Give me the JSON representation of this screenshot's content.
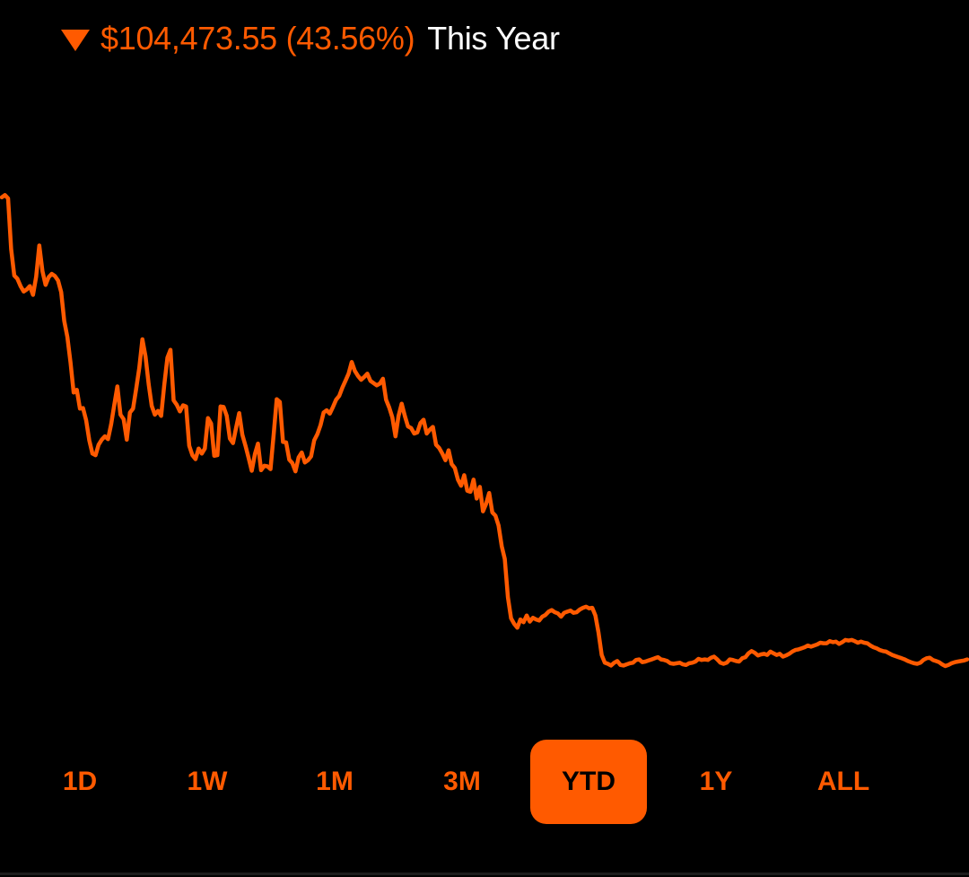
{
  "header": {
    "change_text": "$104,473.55 (43.56%)",
    "period_text": "This Year",
    "direction_icon": "down-triangle-icon"
  },
  "ranges": {
    "items": [
      "1D",
      "1W",
      "1M",
      "3M",
      "YTD",
      "1Y",
      "ALL"
    ],
    "selected": "YTD"
  },
  "colors": {
    "accent": "#FF5A00",
    "background": "#000000",
    "text": "#FFFFFF"
  },
  "chart_data": {
    "type": "line",
    "title": "",
    "xlabel": "",
    "ylabel": "",
    "grid": false,
    "legend": "none",
    "ylim": [
      0,
      100
    ],
    "series": [
      {
        "values": [
          96.8,
          97.2,
          96.6,
          87.5,
          82.7,
          82.1,
          80.8,
          79.8,
          80.2,
          80.8,
          79.2,
          82.5,
          88.1,
          83.5,
          81.0,
          82.4,
          83.0,
          82.6,
          81.8,
          79.7,
          74.5,
          71.6,
          67.0,
          61.6,
          62.1,
          58.7,
          58.8,
          56.6,
          53.0,
          50.6,
          50.3,
          52.2,
          53.1,
          53.7,
          53.2,
          55.9,
          59.4,
          62.7,
          57.6,
          56.8,
          53.1,
          58.0,
          58.7,
          62.2,
          66.0,
          71.2,
          68.1,
          63.1,
          59.2,
          57.6,
          58.3,
          57.4,
          63.0,
          67.9,
          69.3,
          60.2,
          59.4,
          58.2,
          59.3,
          59.1,
          52.0,
          50.3,
          49.6,
          51.5,
          50.6,
          51.5,
          57.0,
          56.0,
          50.2,
          50.3,
          59.1,
          59.0,
          57.4,
          53.3,
          52.5,
          55.3,
          57.9,
          54.0,
          52.0,
          49.8,
          47.5,
          50.5,
          52.4,
          47.6,
          48.4,
          48.3,
          47.8,
          54.0,
          60.4,
          59.9,
          52.7,
          52.6,
          49.5,
          48.9,
          47.4,
          49.9,
          50.8,
          49.0,
          49.4,
          50.1,
          53.0,
          54.1,
          55.7,
          58.0,
          58.4,
          57.8,
          59.0,
          60.3,
          61.0,
          62.5,
          63.7,
          65.0,
          67.1,
          65.5,
          64.6,
          63.9,
          64.4,
          65.0,
          63.7,
          63.3,
          62.9,
          63.2,
          64.1,
          60.3,
          58.9,
          57.1,
          53.7,
          57.4,
          59.6,
          57.4,
          55.5,
          55.2,
          54.2,
          54.4,
          56.1,
          56.7,
          54.2,
          54.9,
          55.4,
          52.2,
          51.6,
          50.6,
          49.4,
          51.2,
          48.7,
          48.0,
          45.9,
          44.8,
          46.7,
          43.9,
          43.7,
          45.9,
          42.5,
          44.6,
          40.2,
          41.5,
          43.5,
          40.0,
          39.4,
          37.6,
          33.9,
          31.6,
          24.7,
          20.9,
          19.9,
          19.2,
          20.7,
          20.2,
          21.4,
          20.3,
          21.0,
          20.7,
          20.5,
          21.2,
          21.5,
          22.1,
          22.4,
          22.0,
          21.8,
          21.2,
          21.9,
          22.1,
          22.3,
          21.9,
          22.0,
          22.5,
          22.8,
          23.0,
          22.7,
          22.8,
          21.4,
          18.3,
          14.3,
          12.9,
          12.7,
          12.4,
          12.9,
          13.2,
          12.5,
          12.4,
          12.6,
          12.8,
          12.9,
          13.4,
          13.5,
          13.0,
          13.1,
          13.3,
          13.5,
          13.7,
          13.9,
          13.5,
          13.4,
          13.2,
          12.8,
          12.7,
          12.8,
          12.9,
          12.6,
          12.5,
          12.8,
          12.9,
          13.1,
          13.6,
          13.4,
          13.5,
          13.4,
          13.8,
          14.0,
          13.5,
          12.9,
          12.7,
          12.9,
          13.5,
          13.4,
          13.2,
          13.1,
          13.7,
          13.9,
          14.6,
          15.0,
          14.7,
          14.2,
          14.4,
          14.5,
          14.3,
          14.9,
          14.6,
          14.3,
          14.5,
          14.0,
          14.2,
          14.5,
          14.9,
          15.2,
          15.3,
          15.5,
          15.7,
          16.0,
          15.8,
          16.0,
          16.2,
          16.5,
          16.4,
          16.4,
          16.8,
          16.6,
          16.7,
          16.3,
          16.6,
          17.0,
          16.9,
          17.0,
          16.8,
          16.5,
          16.7,
          16.5,
          16.4,
          16.0,
          15.7,
          15.5,
          15.2,
          15.0,
          14.9,
          14.6,
          14.3,
          14.1,
          13.9,
          13.7,
          13.5,
          13.2,
          13.0,
          12.8,
          12.7,
          12.9,
          13.4,
          13.7,
          13.8,
          13.4,
          13.2,
          13.0,
          12.6,
          12.3,
          12.5,
          12.8,
          13.0,
          13.1,
          13.2,
          13.3,
          13.5
        ]
      }
    ]
  }
}
